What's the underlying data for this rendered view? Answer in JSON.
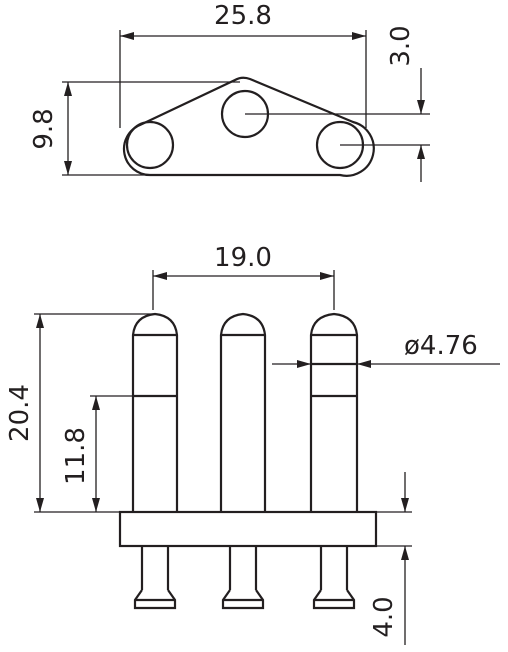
{
  "diagram": {
    "top_view": {
      "width_label": "25.8",
      "height_label": "9.8",
      "offset_label": "3.0"
    },
    "front_view": {
      "pitch_label": "19.0",
      "diameter_label": "ø4.76",
      "total_height_label": "20.4",
      "pin_height_label": "11.8",
      "tail_length_label": "4.0"
    }
  }
}
